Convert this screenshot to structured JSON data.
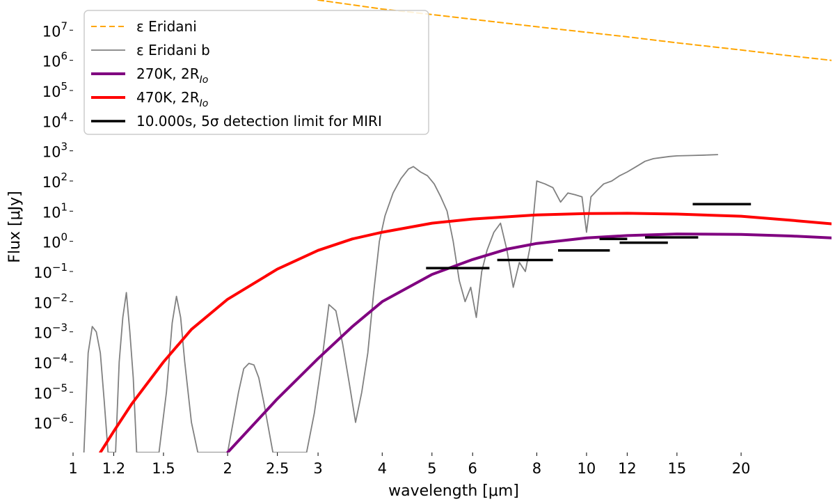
{
  "chart_data": {
    "type": "line",
    "x_scale": "log",
    "y_scale": "log",
    "xlim": [
      1.0,
      30.0
    ],
    "ylim": [
      1e-07,
      100000000.0
    ],
    "xlabel": "wavelength [μm]",
    "ylabel": "Flux [μJy]",
    "grid": false,
    "legend_position": "top-left",
    "x_ticks": [
      {
        "value": 1,
        "label": "1"
      },
      {
        "value": 1.2,
        "label": "1.2"
      },
      {
        "value": 1.5,
        "label": "1.5"
      },
      {
        "value": 2,
        "label": "2"
      },
      {
        "value": 2.5,
        "label": "2.5"
      },
      {
        "value": 3,
        "label": "3"
      },
      {
        "value": 4,
        "label": "4"
      },
      {
        "value": 5,
        "label": "5"
      },
      {
        "value": 6,
        "label": "6"
      },
      {
        "value": 8,
        "label": "8"
      },
      {
        "value": 10,
        "label": "10"
      },
      {
        "value": 12,
        "label": "12"
      },
      {
        "value": 15,
        "label": "15"
      },
      {
        "value": 20,
        "label": "20"
      }
    ],
    "y_ticks": [
      {
        "exp": -6,
        "label": "10"
      },
      {
        "exp": -5,
        "label": "10"
      },
      {
        "exp": -4,
        "label": "10"
      },
      {
        "exp": -3,
        "label": "10"
      },
      {
        "exp": -2,
        "label": "10"
      },
      {
        "exp": -1,
        "label": "10"
      },
      {
        "exp": 0,
        "label": "10"
      },
      {
        "exp": 1,
        "label": "10"
      },
      {
        "exp": 2,
        "label": "10"
      },
      {
        "exp": 3,
        "label": "10"
      },
      {
        "exp": 4,
        "label": "10"
      },
      {
        "exp": 5,
        "label": "10"
      },
      {
        "exp": 6,
        "label": "10"
      },
      {
        "exp": 7,
        "label": "10"
      }
    ],
    "series": [
      {
        "name": "ε Eridani",
        "color": "#ffa500",
        "style": "dashed",
        "points": [
          [
            3.0,
            100000000.0
          ],
          [
            4.0,
            50000000.0
          ],
          [
            5.0,
            33000000.0
          ],
          [
            6.0,
            23000000.0
          ],
          [
            8.0,
            13000000.0
          ],
          [
            10.0,
            8500000.0
          ],
          [
            12.0,
            6000000.0
          ],
          [
            15.0,
            3800000.0
          ],
          [
            20.0,
            2200000.0
          ],
          [
            25.0,
            1400000.0
          ],
          [
            30.0,
            1000000.0
          ]
        ]
      },
      {
        "name": "ε Eridani b",
        "color": "#808080",
        "style": "solid",
        "points": [
          [
            1.05,
            1e-07
          ],
          [
            1.07,
            0.0002
          ],
          [
            1.09,
            0.0015
          ],
          [
            1.11,
            0.001
          ],
          [
            1.13,
            0.0002
          ],
          [
            1.15,
            5e-06
          ],
          [
            1.17,
            1e-07
          ],
          [
            1.21,
            1e-07
          ],
          [
            1.23,
            0.0001
          ],
          [
            1.25,
            0.003
          ],
          [
            1.27,
            0.02
          ],
          [
            1.29,
            0.001
          ],
          [
            1.31,
            3e-05
          ],
          [
            1.33,
            1e-07
          ],
          [
            1.47,
            1e-07
          ],
          [
            1.52,
            1e-05
          ],
          [
            1.56,
            0.002
          ],
          [
            1.59,
            0.015
          ],
          [
            1.62,
            0.003
          ],
          [
            1.65,
            0.0001
          ],
          [
            1.7,
            1e-06
          ],
          [
            1.75,
            1e-07
          ],
          [
            2.0,
            1e-07
          ],
          [
            2.05,
            1e-06
          ],
          [
            2.1,
            1e-05
          ],
          [
            2.15,
            6e-05
          ],
          [
            2.2,
            9e-05
          ],
          [
            2.25,
            8e-05
          ],
          [
            2.3,
            3e-05
          ],
          [
            2.35,
            5e-06
          ],
          [
            2.45,
            1e-07
          ],
          [
            2.85,
            1e-07
          ],
          [
            2.95,
            2e-06
          ],
          [
            3.05,
            0.0001
          ],
          [
            3.15,
            0.008
          ],
          [
            3.25,
            0.005
          ],
          [
            3.35,
            0.0004
          ],
          [
            3.45,
            2e-05
          ],
          [
            3.55,
            1e-06
          ],
          [
            3.65,
            1e-05
          ],
          [
            3.75,
            0.0002
          ],
          [
            3.85,
            0.02
          ],
          [
            3.95,
            1.0
          ],
          [
            4.05,
            7.0
          ],
          [
            4.2,
            40.0
          ],
          [
            4.35,
            120.0
          ],
          [
            4.5,
            250.0
          ],
          [
            4.6,
            300.0
          ],
          [
            4.75,
            200.0
          ],
          [
            4.9,
            150.0
          ],
          [
            5.05,
            80.0
          ],
          [
            5.2,
            30.0
          ],
          [
            5.35,
            10.0
          ],
          [
            5.5,
            1.0
          ],
          [
            5.65,
            0.05
          ],
          [
            5.8,
            0.01
          ],
          [
            5.95,
            0.03
          ],
          [
            6.1,
            0.003
          ],
          [
            6.25,
            0.1
          ],
          [
            6.4,
            0.5
          ],
          [
            6.6,
            2.0
          ],
          [
            6.8,
            4.0
          ],
          [
            7.0,
            0.5
          ],
          [
            7.2,
            0.03
          ],
          [
            7.4,
            0.2
          ],
          [
            7.6,
            0.1
          ],
          [
            7.8,
            1.0
          ],
          [
            8.0,
            100.0
          ],
          [
            8.3,
            80.0
          ],
          [
            8.6,
            60.0
          ],
          [
            8.9,
            20.0
          ],
          [
            9.2,
            40.0
          ],
          [
            9.5,
            35.0
          ],
          [
            9.8,
            30.0
          ],
          [
            10.0,
            2.0
          ],
          [
            10.2,
            30.0
          ],
          [
            10.5,
            50.0
          ],
          [
            10.8,
            80.0
          ],
          [
            11.2,
            100.0
          ],
          [
            11.6,
            150.0
          ],
          [
            12.0,
            200.0
          ],
          [
            12.5,
            300.0
          ],
          [
            13.0,
            450.0
          ],
          [
            13.5,
            550.0
          ],
          [
            14.0,
            600.0
          ],
          [
            14.5,
            650.0
          ],
          [
            15.0,
            680.0
          ],
          [
            16.0,
            700.0
          ],
          [
            17.0,
            720.0
          ],
          [
            18.0,
            750.0
          ]
        ]
      },
      {
        "name": "270K, 2R",
        "name_subscript": "Io",
        "color": "#800080",
        "style": "solid",
        "points": [
          [
            2.0,
            1e-07
          ],
          [
            2.5,
            6e-06
          ],
          [
            3.0,
            0.00013
          ],
          [
            3.5,
            0.0015
          ],
          [
            4.0,
            0.01
          ],
          [
            5.0,
            0.08
          ],
          [
            6.0,
            0.25
          ],
          [
            7.0,
            0.55
          ],
          [
            8.0,
            0.85
          ],
          [
            10.0,
            1.3
          ],
          [
            12.0,
            1.55
          ],
          [
            15.0,
            1.75
          ],
          [
            20.0,
            1.7
          ],
          [
            25.0,
            1.5
          ],
          [
            30.0,
            1.3
          ]
        ]
      },
      {
        "name": "470K, 2R",
        "name_subscript": "Io",
        "color": "#ff0000",
        "style": "solid",
        "points": [
          [
            1.13,
            1e-07
          ],
          [
            1.2,
            5e-07
          ],
          [
            1.3,
            4e-06
          ],
          [
            1.5,
            0.0001
          ],
          [
            1.7,
            0.0012
          ],
          [
            2.0,
            0.012
          ],
          [
            2.5,
            0.12
          ],
          [
            3.0,
            0.5
          ],
          [
            3.5,
            1.2
          ],
          [
            4.0,
            2.0
          ],
          [
            5.0,
            4.0
          ],
          [
            6.0,
            5.5
          ],
          [
            8.0,
            7.5
          ],
          [
            10.0,
            8.3
          ],
          [
            12.0,
            8.5
          ],
          [
            15.0,
            8.0
          ],
          [
            20.0,
            6.8
          ],
          [
            25.0,
            5.0
          ],
          [
            30.0,
            3.8
          ]
        ]
      }
    ],
    "detection_limits": {
      "name": "10.000s, 5σ detection limit for MIRI",
      "color": "#000000",
      "segments": [
        {
          "x0": 4.87,
          "x1": 6.47,
          "y": 0.13
        },
        {
          "x0": 6.7,
          "x1": 8.6,
          "y": 0.24
        },
        {
          "x0": 8.8,
          "x1": 11.1,
          "y": 0.5
        },
        {
          "x0": 10.6,
          "x1": 12.0,
          "y": 1.2
        },
        {
          "x0": 11.6,
          "x1": 14.4,
          "y": 0.9
        },
        {
          "x0": 13.0,
          "x1": 16.5,
          "y": 1.35
        },
        {
          "x0": 16.1,
          "x1": 20.9,
          "y": 17.0
        }
      ]
    }
  }
}
